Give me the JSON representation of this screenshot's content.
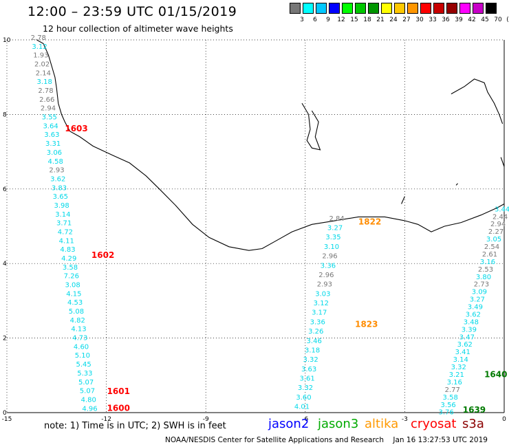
{
  "header": {
    "title": "12:00  –  23:59 UTC 01/15/2019",
    "subtitle": "12 hour collection of altimeter wave heights"
  },
  "colorbar": {
    "colors": [
      "#777777",
      "#00ffff",
      "#00c8ff",
      "#0000ff",
      "#00ff00",
      "#00c800",
      "#009600",
      "#ffff00",
      "#ffc800",
      "#ff9600",
      "#ff0000",
      "#c80000",
      "#960000",
      "#ff00ff",
      "#c800c8",
      "#000000"
    ],
    "labels": [
      "3",
      "6",
      "9",
      "12",
      "15",
      "18",
      "21",
      "24",
      "27",
      "30",
      "33",
      "36",
      "39",
      "42",
      "45",
      "70",
      "(ft)"
    ]
  },
  "map": {
    "x_ticks": [
      "-15",
      "-12",
      "-9",
      "-6",
      "-3",
      "0"
    ],
    "y_ticks": [
      "0",
      "2",
      "4",
      "6",
      "8",
      "10"
    ],
    "xlim": [
      -15,
      0
    ],
    "ylim": [
      0,
      10
    ],
    "grid": "dotted"
  },
  "tracks": [
    {
      "mission": "cryosat s3a",
      "label_color": "#ff0000",
      "pass_labels": [
        {
          "text": "1603",
          "x": -13.25,
          "y": 7.55
        },
        {
          "text": "1602",
          "x": -12.45,
          "y": 4.15
        },
        {
          "text": "1601",
          "x": -11.98,
          "y": 0.5
        },
        {
          "text": "1600",
          "x": -11.98,
          "y": 0.05
        }
      ],
      "lon_start": -14.05,
      "lat_start": 10.0,
      "lon_end": -12.5,
      "lat_end": 0.05,
      "values": [
        "2.78",
        "3.12",
        "1.93",
        "2.02",
        "2.14",
        "3.18",
        "2.78",
        "2.66",
        "2.94",
        "3.55",
        "3.64",
        "3.63",
        "3.31",
        "3.06",
        "4.58",
        "2.93",
        "3.62",
        "3.83",
        "3.65",
        "3.98",
        "3.14",
        "3.71",
        "4.72",
        "4.11",
        "4.83",
        "4.29",
        "3.58",
        "7.26",
        "3.08",
        "4.15",
        "4.53",
        "5.08",
        "4.82",
        "4.13",
        "4.73",
        "4.60",
        "5.10",
        "5.45",
        "5.33",
        "5.07",
        "5.07",
        "4.80",
        "4.96"
      ]
    },
    {
      "mission": "altika",
      "label_color": "#ff8c00",
      "pass_labels": [
        {
          "text": "1822",
          "x": -4.4,
          "y": 5.05
        },
        {
          "text": "1823",
          "x": -4.5,
          "y": 2.3
        }
      ],
      "lon_start": -5.05,
      "lat_start": 5.15,
      "lon_end": -6.1,
      "lat_end": 0.1,
      "values": [
        "2.84",
        "3.27",
        "3.35",
        "3.10",
        "2.96",
        "3.36",
        "2.96",
        "2.93",
        "3.03",
        "3.12",
        "3.17",
        "3.36",
        "3.26",
        "3.46",
        "3.18",
        "3.32",
        "3.63",
        "3.61",
        "3.32",
        "3.60",
        "4.01"
      ]
    },
    {
      "mission": "jason3",
      "label_color": "#007a00",
      "pass_labels": [
        {
          "text": "1640",
          "x": -0.6,
          "y": 0.95
        },
        {
          "text": "1639",
          "x": -1.25,
          "y": 0.0
        }
      ],
      "lon_start": -0.06,
      "lat_start": 5.4,
      "lon_end": -1.75,
      "lat_end": -0.05,
      "values": [
        "3.44",
        "2.44",
        "2.94",
        "2.27",
        "3.05",
        "2.54",
        "2.61",
        "3.16",
        "2.53",
        "3.80",
        "2.73",
        "3.09",
        "3.27",
        "3.49",
        "3.62",
        "3.48",
        "3.39",
        "3.47",
        "3.62",
        "3.41",
        "3.14",
        "3.32",
        "3.21",
        "3.16",
        "2.77",
        "3.58",
        "3.56",
        "3.76"
      ]
    }
  ],
  "legend": {
    "note": "note:  1) Time is in UTC;  2) SWH is in feet",
    "items": [
      {
        "name": "jason2",
        "color": "#0000ff"
      },
      {
        "name": "jason3",
        "color": "#00aa00"
      },
      {
        "name": "altika",
        "color": "#ff9900"
      },
      {
        "name": "cryosat",
        "color": "#ff0000"
      },
      {
        "name": "s3a",
        "color": "#8b0000"
      }
    ]
  },
  "footer": {
    "credit": "NOAA/NESDIS Center for Satellite Applications and Research",
    "timestamp": "Jan 16 13:27:53 UTC 2019"
  }
}
